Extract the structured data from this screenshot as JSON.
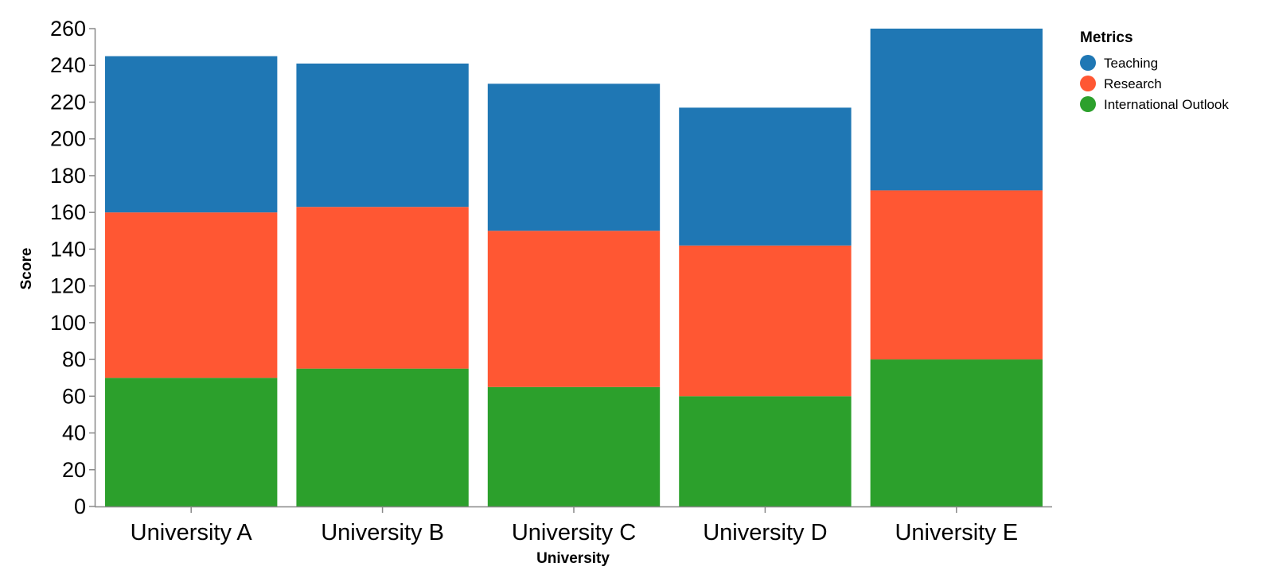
{
  "chart_data": {
    "type": "bar",
    "stacked": true,
    "categories": [
      "University A",
      "University B",
      "University C",
      "University D",
      "University E"
    ],
    "series": [
      {
        "name": "International Outlook",
        "color": "#2ca02c",
        "values": [
          70,
          75,
          65,
          60,
          80
        ]
      },
      {
        "name": "Research",
        "color": "#ff5733",
        "values": [
          90,
          88,
          85,
          82,
          92
        ]
      },
      {
        "name": "Teaching",
        "color": "#1f77b4",
        "values": [
          85,
          78,
          80,
          75,
          88
        ]
      }
    ],
    "xlabel": "University",
    "ylabel": "Score",
    "ylim": [
      0,
      260
    ],
    "yticks": [
      0,
      20,
      40,
      60,
      80,
      100,
      120,
      140,
      160,
      180,
      200,
      220,
      240,
      260
    ],
    "grid": false,
    "legend": {
      "title": "Metrics",
      "position": "top-right",
      "entries": [
        "Teaching",
        "Research",
        "International Outlook"
      ]
    }
  }
}
